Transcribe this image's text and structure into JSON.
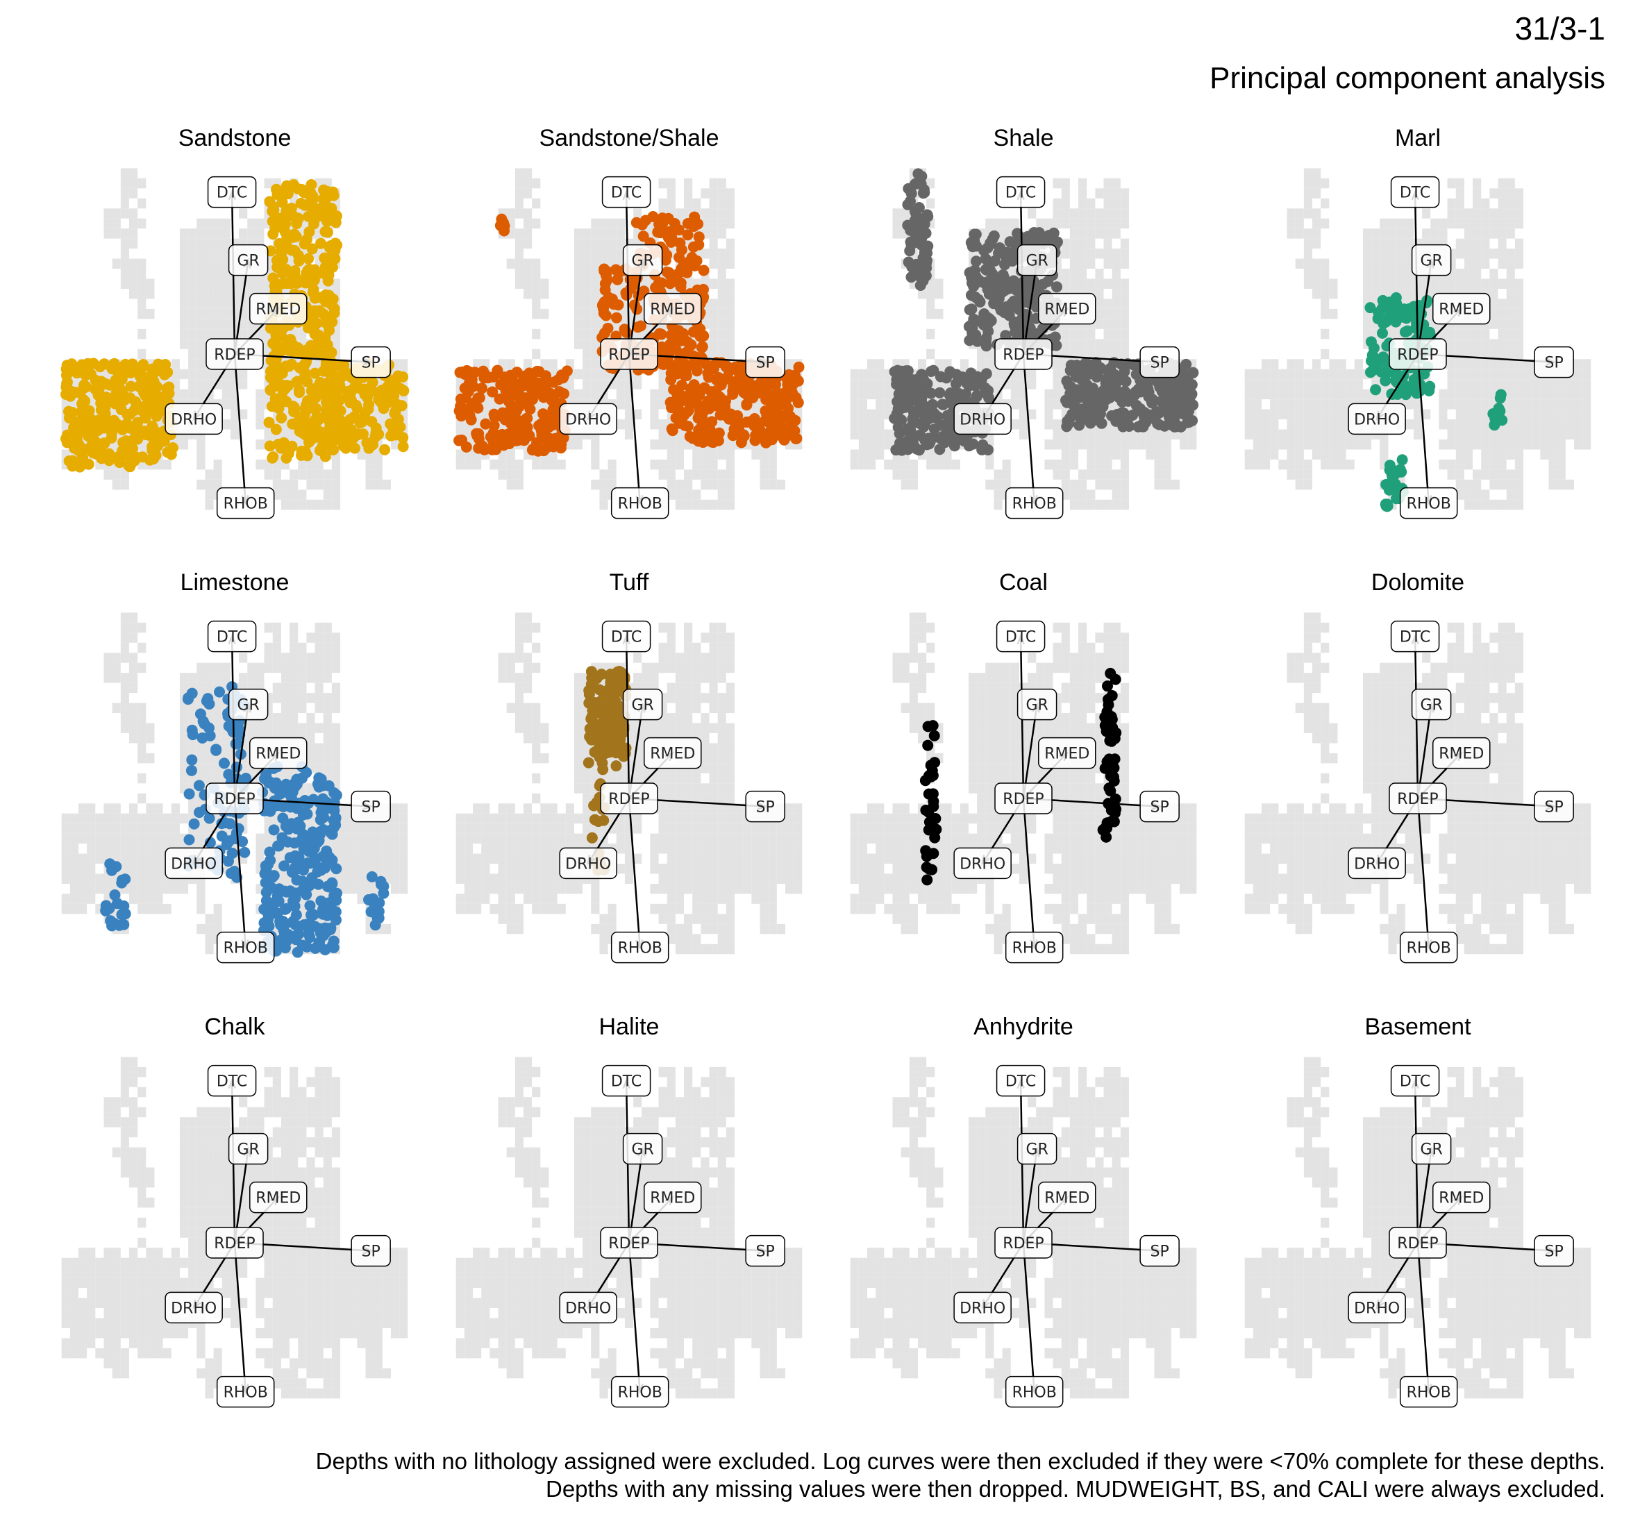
{
  "header": {
    "title": "31/3-1",
    "subtitle": "Principal component analysis"
  },
  "caption": {
    "line1": "Depths with no lithology assigned were excluded. Log curves were then excluded if they were <70% complete for these depths.",
    "line2": "Depths with any missing values were then dropped. MUDWEIGHT, BS, and CALI were always excluded."
  },
  "colors": {
    "background_points": "#e3e3e3",
    "arrow": "#000000",
    "label_box_fill": "#ffffff"
  },
  "chart_data": {
    "type": "scatter",
    "facets": [
      "Sandstone",
      "Sandstone/Shale",
      "Shale",
      "Marl",
      "Limestone",
      "Tuff",
      "Coal",
      "Dolomite",
      "Chalk",
      "Halite",
      "Anhydrite",
      "Basement"
    ],
    "loadings": [
      {
        "name": "DTC",
        "x": -0.02,
        "y": 1.0
      },
      {
        "name": "GR",
        "x": 0.1,
        "y": 0.58
      },
      {
        "name": "RMED",
        "x": 0.32,
        "y": 0.28
      },
      {
        "name": "RDEP",
        "x": 0.0,
        "y": 0.0
      },
      {
        "name": "SP",
        "x": 1.0,
        "y": -0.05
      },
      {
        "name": "DRHO",
        "x": -0.3,
        "y": -0.4
      },
      {
        "name": "RHOB",
        "x": 0.08,
        "y": -0.92
      }
    ],
    "xlim": [
      -1.3,
      1.3
    ],
    "ylim": [
      -1.2,
      1.2
    ],
    "series": [
      {
        "name": "Sandstone",
        "color": "#E6AC00",
        "clusters": [
          {
            "x": [
              -1.25,
              -0.45
            ],
            "y": [
              -0.7,
              -0.05
            ],
            "n": 260
          },
          {
            "x": [
              0.25,
              0.75
            ],
            "y": [
              -0.65,
              1.05
            ],
            "n": 380
          },
          {
            "x": [
              0.65,
              1.25
            ],
            "y": [
              -0.6,
              -0.05
            ],
            "n": 160
          }
        ]
      },
      {
        "name": "Sandstone/Shale",
        "color": "#DD5C00",
        "clusters": [
          {
            "x": [
              -1.25,
              -0.45
            ],
            "y": [
              -0.6,
              -0.1
            ],
            "n": 200
          },
          {
            "x": [
              -0.2,
              0.05
            ],
            "y": [
              -0.1,
              0.55
            ],
            "n": 60
          },
          {
            "x": [
              0.05,
              0.55
            ],
            "y": [
              -0.1,
              0.85
            ],
            "n": 180
          },
          {
            "x": [
              0.3,
              1.25
            ],
            "y": [
              -0.55,
              -0.05
            ],
            "n": 260
          },
          {
            "x": [
              -0.95,
              -0.88
            ],
            "y": [
              0.75,
              0.85
            ],
            "n": 8
          }
        ]
      },
      {
        "name": "Shale",
        "color": "#666666",
        "clusters": [
          {
            "x": [
              -0.85,
              -0.7
            ],
            "y": [
              0.4,
              1.15
            ],
            "n": 60
          },
          {
            "x": [
              -0.4,
              0.25
            ],
            "y": [
              0.05,
              0.75
            ],
            "n": 260
          },
          {
            "x": [
              -0.95,
              -0.25
            ],
            "y": [
              -0.6,
              -0.1
            ],
            "n": 220
          },
          {
            "x": [
              0.3,
              1.25
            ],
            "y": [
              -0.45,
              -0.05
            ],
            "n": 260
          }
        ]
      },
      {
        "name": "Marl",
        "color": "#1FA07A",
        "clusters": [
          {
            "x": [
              -0.35,
              0.1
            ],
            "y": [
              -0.25,
              0.35
            ],
            "n": 110
          },
          {
            "x": [
              -0.25,
              -0.1
            ],
            "y": [
              -0.95,
              -0.65
            ],
            "n": 25
          },
          {
            "x": [
              0.55,
              0.62
            ],
            "y": [
              -0.45,
              -0.25
            ],
            "n": 10
          }
        ]
      },
      {
        "name": "Limestone",
        "color": "#3982BF",
        "clusters": [
          {
            "x": [
              -0.35,
              0.1
            ],
            "y": [
              -0.45,
              0.7
            ],
            "n": 70
          },
          {
            "x": [
              0.2,
              0.75
            ],
            "y": [
              -0.95,
              0.2
            ],
            "n": 260
          },
          {
            "x": [
              -0.95,
              -0.8
            ],
            "y": [
              -0.8,
              -0.4
            ],
            "n": 20
          },
          {
            "x": [
              0.95,
              1.1
            ],
            "y": [
              -0.8,
              -0.45
            ],
            "n": 15
          },
          {
            "x": [
              -0.05,
              0.05
            ],
            "y": [
              -0.6,
              0.65
            ],
            "n": 20
          }
        ]
      },
      {
        "name": "Tuff",
        "color": "#A2741C",
        "clusters": [
          {
            "x": [
              -0.3,
              -0.02
            ],
            "y": [
              0.2,
              0.8
            ],
            "n": 140
          },
          {
            "x": [
              -0.28,
              -0.18
            ],
            "y": [
              -0.45,
              0.2
            ],
            "n": 18
          }
        ]
      },
      {
        "name": "Coal",
        "color": "#000000",
        "clusters": [
          {
            "x": [
              -0.72,
              -0.64
            ],
            "y": [
              -0.55,
              0.45
            ],
            "n": 30
          },
          {
            "x": [
              0.58,
              0.68
            ],
            "y": [
              -0.25,
              0.8
            ],
            "n": 45
          }
        ]
      },
      {
        "name": "Dolomite",
        "color": "#808080",
        "clusters": []
      },
      {
        "name": "Chalk",
        "color": "#808080",
        "clusters": []
      },
      {
        "name": "Halite",
        "color": "#808080",
        "clusters": []
      },
      {
        "name": "Anhydrite",
        "color": "#808080",
        "clusters": []
      },
      {
        "name": "Basement",
        "color": "#808080",
        "clusters": []
      }
    ]
  }
}
